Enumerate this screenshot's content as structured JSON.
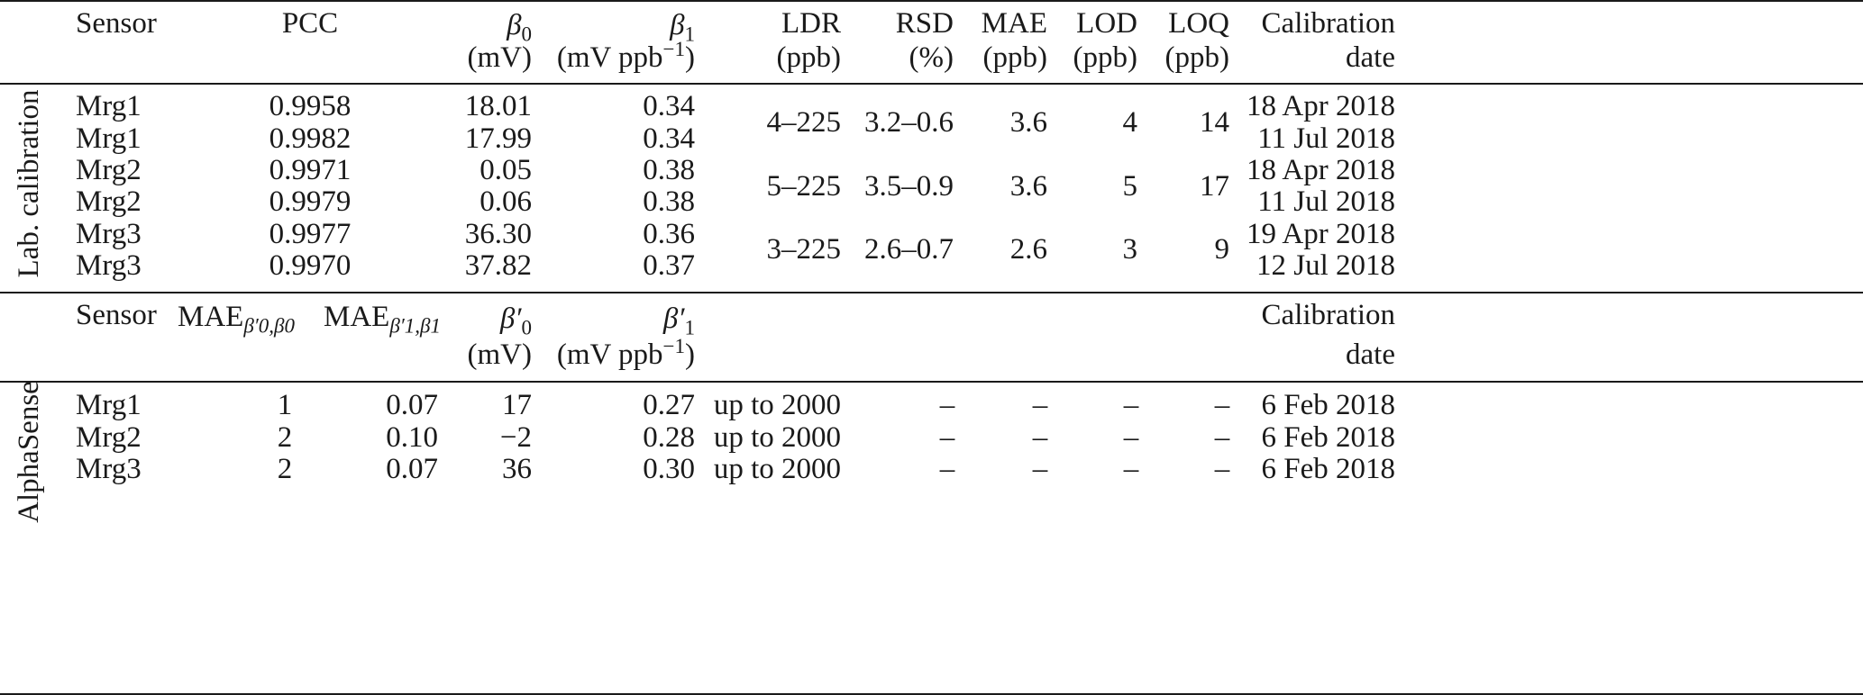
{
  "lab": {
    "section_label": "Lab. calibration",
    "header": {
      "sensor": "Sensor",
      "pcc": "PCC",
      "b0_sym": "β",
      "b0_sub": "0",
      "b0_unit": "(mV)",
      "b1_sym": "β",
      "b1_sub": "1",
      "b1_unit_a": "(mV ppb",
      "b1_unit_sup": "−1",
      "b1_unit_b": ")",
      "ldr": "LDR",
      "ldr_unit": "(ppb)",
      "rsd": "RSD",
      "rsd_unit": "(%)",
      "mae": "MAE",
      "mae_unit": "(ppb)",
      "lod": "LOD",
      "lod_unit": "(ppb)",
      "loq": "LOQ",
      "loq_unit": "(ppb)",
      "cal": "Calibration",
      "date": "date"
    },
    "rows": [
      {
        "sensor": "Mrg1",
        "pcc": "0.9958",
        "b0": "18.01",
        "b1": "0.34",
        "date": "18 Apr 2018"
      },
      {
        "sensor": "Mrg1",
        "pcc": "0.9982",
        "b0": "17.99",
        "b1": "0.34",
        "date": "11 Jul 2018"
      },
      {
        "sensor": "Mrg2",
        "pcc": "0.9971",
        "b0": "0.05",
        "b1": "0.38",
        "date": "18 Apr 2018"
      },
      {
        "sensor": "Mrg2",
        "pcc": "0.9979",
        "b0": "0.06",
        "b1": "0.38",
        "date": "11 Jul 2018"
      },
      {
        "sensor": "Mrg3",
        "pcc": "0.9977",
        "b0": "36.30",
        "b1": "0.36",
        "date": "19 Apr 2018"
      },
      {
        "sensor": "Mrg3",
        "pcc": "0.9970",
        "b0": "37.82",
        "b1": "0.37",
        "date": "12 Jul 2018"
      }
    ],
    "groups": [
      {
        "ldr": "4–225",
        "rsd": "3.2–0.6",
        "mae": "3.6",
        "lod": "4",
        "loq": "14"
      },
      {
        "ldr": "5–225",
        "rsd": "3.5–0.9",
        "mae": "3.6",
        "lod": "5",
        "loq": "17"
      },
      {
        "ldr": "3–225",
        "rsd": "2.6–0.7",
        "mae": "2.6",
        "lod": "3",
        "loq": "9"
      }
    ]
  },
  "alpha": {
    "section_label": "AlphaSense",
    "header": {
      "sensor": "Sensor",
      "mae_a": "MAE",
      "mae_a_sub": "β′0,β0",
      "mae_b": "MAE",
      "mae_b_sub": "β′1,β1",
      "b0p_sym": "β′",
      "b0p_sub": "0",
      "b0p_unit": "(mV)",
      "b1p_sym": "β′",
      "b1p_sub": "1",
      "b1p_unit_a": "(mV ppb",
      "b1p_unit_sup": "−1",
      "b1p_unit_b": ")",
      "cal": "Calibration",
      "date": "date"
    },
    "rows": [
      {
        "sensor": "Mrg1",
        "mae_a": "1",
        "mae_b": "0.07",
        "b0p": "17",
        "b1p": "0.27",
        "ldr": "up to 2000",
        "rsd": "–",
        "mae": "–",
        "lod": "–",
        "loq": "–",
        "date": "6 Feb 2018"
      },
      {
        "sensor": "Mrg2",
        "mae_a": "2",
        "mae_b": "0.10",
        "b0p": "−2",
        "b1p": "0.28",
        "ldr": "up to 2000",
        "rsd": "–",
        "mae": "–",
        "lod": "–",
        "loq": "–",
        "date": "6 Feb 2018"
      },
      {
        "sensor": "Mrg3",
        "mae_a": "2",
        "mae_b": "0.07",
        "b0p": "36",
        "b1p": "0.30",
        "ldr": "up to 2000",
        "rsd": "–",
        "mae": "–",
        "lod": "–",
        "loq": "–",
        "date": "6 Feb 2018"
      }
    ]
  }
}
